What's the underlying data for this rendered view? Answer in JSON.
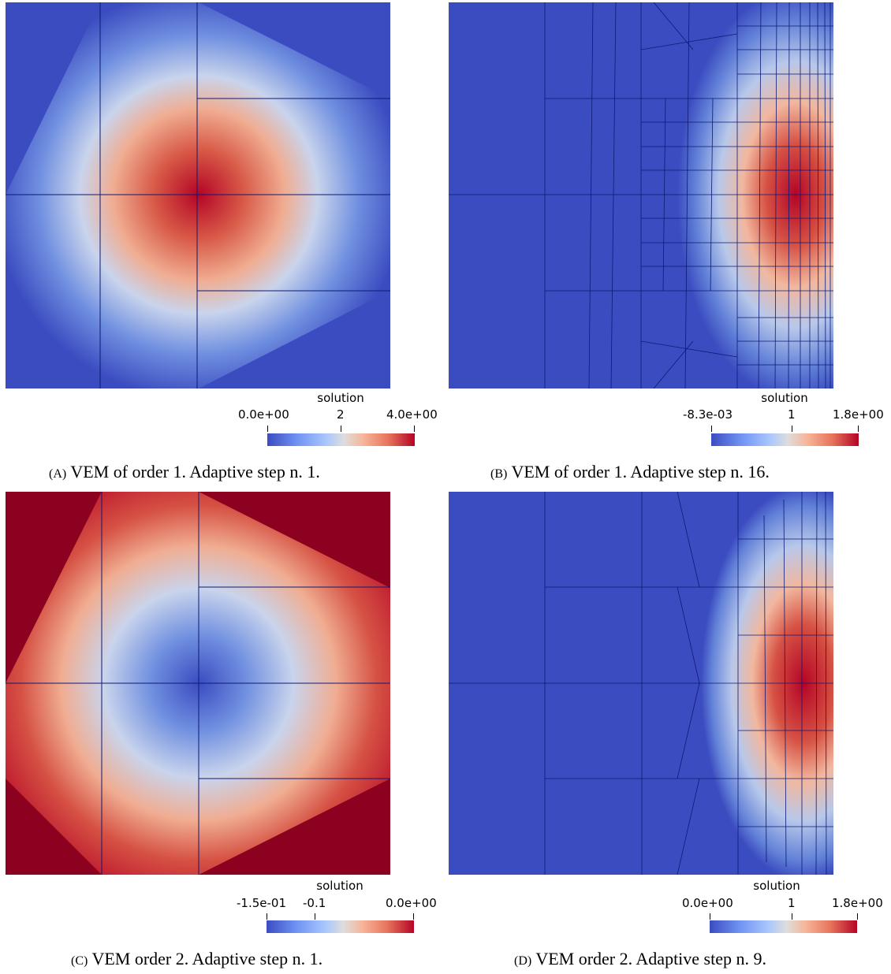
{
  "figure": {
    "panels": [
      {
        "id": "A",
        "colorbar": {
          "title": "solution",
          "min_label": "0.0e+00",
          "mid_label": "2",
          "max_label": "4.0e+00",
          "mid_position": 0.5
        },
        "caption": {
          "tag": "(A)",
          "text": "VEM of order 1. Adaptive step n. 1."
        }
      },
      {
        "id": "B",
        "colorbar": {
          "title": "solution",
          "min_label": "-8.3e-03",
          "mid_label": "1",
          "max_label": "1.8e+00",
          "mid_position": 0.55
        },
        "caption": {
          "tag": "(B)",
          "text": "VEM of order 1. Adaptive step n. 16."
        }
      },
      {
        "id": "C",
        "colorbar": {
          "title": "solution",
          "min_label": "-1.5e-01",
          "mid_label": "-0.1",
          "max_label": "0.0e+00",
          "mid_position": 0.33
        },
        "caption": {
          "tag": "(C)",
          "text": "VEM order 2. Adaptive step n. 1."
        }
      },
      {
        "id": "D",
        "colorbar": {
          "title": "solution",
          "min_label": "0.0e+00",
          "mid_label": "1",
          "max_label": "1.8e+00",
          "mid_position": 0.55
        },
        "caption": {
          "tag": "(D)",
          "text": "VEM order 2. Adaptive step n. 9."
        }
      }
    ],
    "colors": {
      "low": "#3b4cc0",
      "mid": "#dddddd",
      "high": "#b40426",
      "mesh": "#0d1a73"
    }
  }
}
